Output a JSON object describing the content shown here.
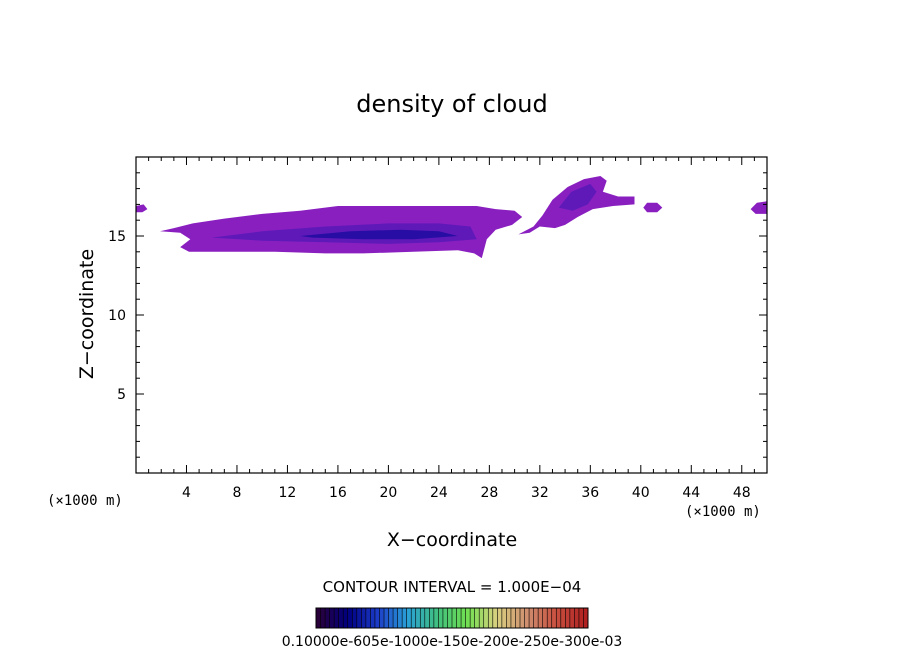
{
  "chart_data": {
    "type": "heatmap",
    "title": "density of cloud",
    "xlabel": "X−coordinate",
    "ylabel": "Z−coordinate",
    "x_unit": "(×1000 m)",
    "x_unit_right": "(×1000 m)",
    "xlim": [
      0,
      50
    ],
    "ylim": [
      0,
      20
    ],
    "x_ticks": [
      4,
      8,
      12,
      16,
      20,
      24,
      28,
      32,
      36,
      40,
      44,
      48
    ],
    "y_ticks": [
      5,
      10,
      15
    ],
    "contour_interval_text": "CONTOUR INTERVAL = 1.000E−04",
    "colorbar": {
      "labels_text": "0.10000e-605e-1000e-150e-200e-250e-300e-03",
      "colors": [
        "#2a003a",
        "#000080",
        "#1c3cc8",
        "#2aa0d8",
        "#40c080",
        "#70e050",
        "#d8d080",
        "#d09070",
        "#c85040",
        "#b02020"
      ]
    },
    "cloud_regions": [
      {
        "name": "main-anvil",
        "outer_polygon": [
          [
            1.9,
            15.3
          ],
          [
            3,
            15.5
          ],
          [
            4.5,
            15.8
          ],
          [
            7,
            16.1
          ],
          [
            10,
            16.4
          ],
          [
            13,
            16.6
          ],
          [
            16,
            16.9
          ],
          [
            20,
            16.9
          ],
          [
            24,
            16.9
          ],
          [
            27,
            16.9
          ],
          [
            28.5,
            16.7
          ],
          [
            30,
            16.6
          ],
          [
            30.6,
            16.2
          ],
          [
            29.8,
            15.7
          ],
          [
            28.5,
            15.4
          ],
          [
            27.8,
            14.8
          ],
          [
            27.4,
            13.6
          ],
          [
            26.8,
            13.9
          ],
          [
            25.5,
            14.1
          ],
          [
            22,
            14.0
          ],
          [
            18,
            13.9
          ],
          [
            15,
            13.9
          ],
          [
            11,
            14.0
          ],
          [
            7,
            14.0
          ],
          [
            4.2,
            14.0
          ],
          [
            3.5,
            14.3
          ],
          [
            4.3,
            14.8
          ],
          [
            3.5,
            15.2
          ]
        ],
        "core_polygon": [
          [
            6,
            14.9
          ],
          [
            10,
            15.3
          ],
          [
            15,
            15.6
          ],
          [
            20,
            15.8
          ],
          [
            24,
            15.8
          ],
          [
            26.5,
            15.6
          ],
          [
            27,
            14.8
          ],
          [
            24,
            14.6
          ],
          [
            20,
            14.5
          ],
          [
            15,
            14.6
          ],
          [
            10,
            14.7
          ]
        ],
        "peak_polygon": [
          [
            13,
            15.0
          ],
          [
            17,
            15.3
          ],
          [
            21,
            15.4
          ],
          [
            24,
            15.3
          ],
          [
            25.5,
            15.0
          ],
          [
            22,
            14.8
          ],
          [
            18,
            14.8
          ],
          [
            14,
            14.9
          ]
        ]
      },
      {
        "name": "turret",
        "outer_polygon": [
          [
            30.3,
            15.1
          ],
          [
            31.5,
            15.6
          ],
          [
            32.2,
            16.3
          ],
          [
            33,
            17.3
          ],
          [
            34.2,
            18.1
          ],
          [
            35.5,
            18.6
          ],
          [
            36.8,
            18.8
          ],
          [
            37.3,
            18.5
          ],
          [
            37,
            17.8
          ],
          [
            38.2,
            17.5
          ],
          [
            39.5,
            17.5
          ],
          [
            39.5,
            17.0
          ],
          [
            37.8,
            16.9
          ],
          [
            36.2,
            16.7
          ],
          [
            35,
            16.2
          ],
          [
            34,
            15.7
          ],
          [
            33.2,
            15.5
          ],
          [
            32,
            15.6
          ],
          [
            31.2,
            15.2
          ]
        ],
        "core_polygon": [
          [
            33.5,
            16.8
          ],
          [
            34.5,
            17.8
          ],
          [
            36,
            18.3
          ],
          [
            36.5,
            17.8
          ],
          [
            35.8,
            17.0
          ],
          [
            34.6,
            16.6
          ]
        ],
        "peak_polygon": []
      },
      {
        "name": "small-patch-40",
        "outer_polygon": [
          [
            40.2,
            16.8
          ],
          [
            40.5,
            17.1
          ],
          [
            41.3,
            17.1
          ],
          [
            41.7,
            16.8
          ],
          [
            41.3,
            16.5
          ],
          [
            40.5,
            16.5
          ]
        ],
        "core_polygon": [],
        "peak_polygon": []
      },
      {
        "name": "edge-patch-left",
        "outer_polygon": [
          [
            0,
            16.9
          ],
          [
            0.6,
            17.0
          ],
          [
            0.9,
            16.7
          ],
          [
            0.5,
            16.5
          ],
          [
            0,
            16.5
          ]
        ],
        "core_polygon": [],
        "peak_polygon": []
      },
      {
        "name": "edge-patch-right",
        "outer_polygon": [
          [
            48.7,
            16.7
          ],
          [
            49.2,
            17.1
          ],
          [
            50,
            17.2
          ],
          [
            50,
            16.4
          ],
          [
            49.1,
            16.4
          ]
        ],
        "core_polygon": [],
        "peak_polygon": []
      }
    ]
  }
}
